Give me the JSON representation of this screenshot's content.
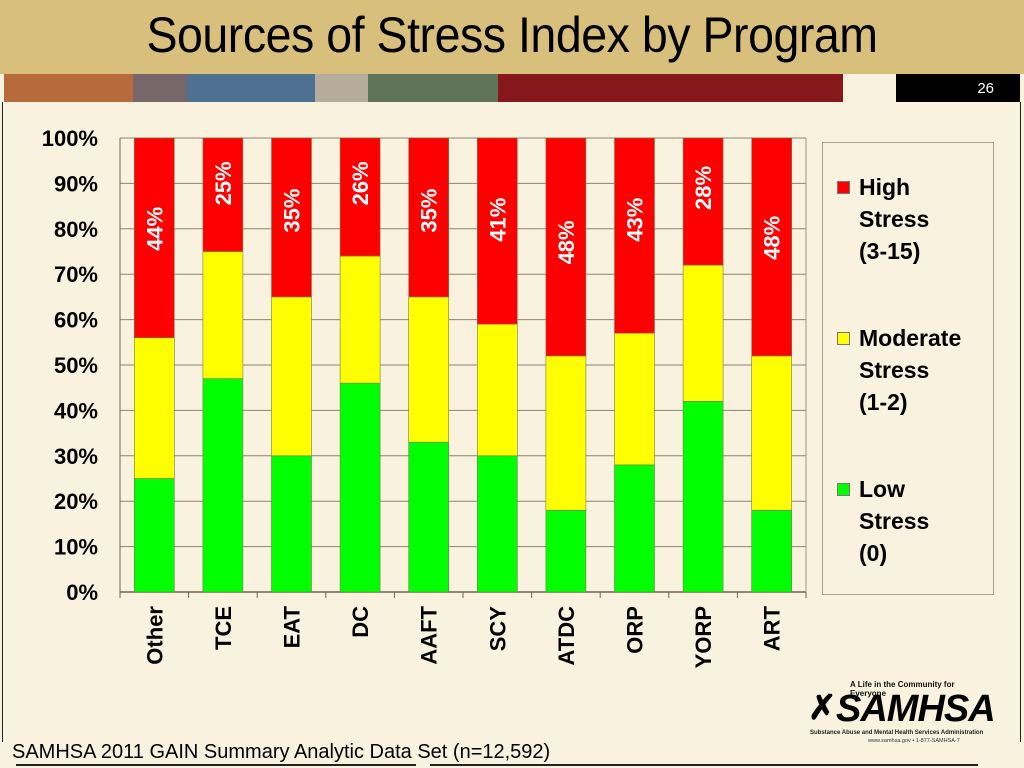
{
  "slide": {
    "title": "Sources of Stress Index by Program",
    "page_number": "26",
    "source_note": "SAMHSA 2011 GAIN Summary Analytic Data Set (n=12,592)",
    "stripe_colors": [
      "#b76b3c",
      "#77666a",
      "#4f7191",
      "#b6ac9c",
      "#5f7458",
      "#86181b",
      "#f8f2df"
    ],
    "logo": {
      "tagline": "A Life in the Community for Everyone",
      "name": "SAMHSA",
      "subtitle": "Substance Abuse and Mental Health Services Administration",
      "contact": "www.samhsa.gov • 1-877-SAMHSA-7"
    }
  },
  "chart_data": {
    "type": "bar",
    "stacked": true,
    "percent": true,
    "title": "Sources of Stress Index by Program",
    "xlabel": "",
    "ylabel": "",
    "ylim": [
      0,
      100
    ],
    "yticks": [
      "0%",
      "10%",
      "20%",
      "30%",
      "40%",
      "50%",
      "60%",
      "70%",
      "80%",
      "90%",
      "100%"
    ],
    "grid": true,
    "legend_position": "right",
    "categories": [
      "Other",
      "TCE",
      "EAT",
      "DC",
      "AAFT",
      "SCY",
      "ATDC",
      "ORP",
      "YORP",
      "ART"
    ],
    "series": [
      {
        "name": "Low Stress (0)",
        "legend_lines": [
          "Low",
          "Stress",
          "(0)"
        ],
        "color": "#00ff00",
        "values": [
          25,
          47,
          30,
          46,
          33,
          30,
          18,
          28,
          42,
          18
        ]
      },
      {
        "name": "Moderate Stress (1-2)",
        "legend_lines": [
          "Moderate",
          "Stress",
          "(1-2)"
        ],
        "color": "#ffff00",
        "values": [
          31,
          28,
          35,
          28,
          32,
          29,
          34,
          29,
          30,
          34
        ]
      },
      {
        "name": "High Stress (3-15)",
        "legend_lines": [
          "High",
          "Stress",
          "(3-15)"
        ],
        "color": "#ff0000",
        "values": [
          44,
          25,
          35,
          26,
          35,
          41,
          48,
          43,
          28,
          48
        ]
      }
    ],
    "data_labels": {
      "series": "High Stress (3-15)",
      "labels": [
        "44%",
        "25%",
        "35%",
        "26%",
        "35%",
        "41%",
        "48%",
        "43%",
        "28%",
        "48%"
      ],
      "label_position_pct": [
        80,
        90,
        84,
        90,
        84,
        82,
        77,
        82,
        89,
        78
      ]
    }
  }
}
